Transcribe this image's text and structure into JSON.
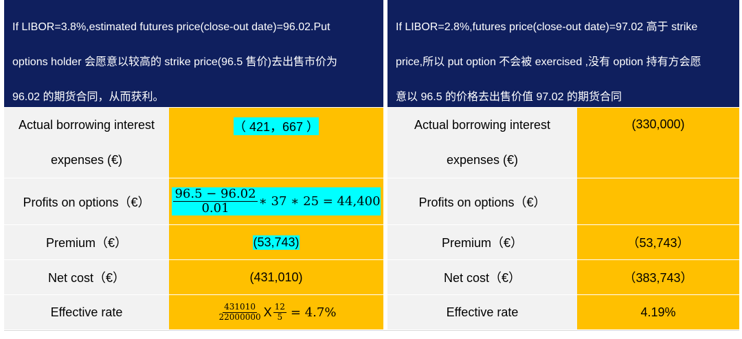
{
  "left": {
    "header": {
      "line1": "If LIBOR=3.8%,estimated futures price(close-out date)=96.02.Put",
      "line2": "options holder  会愿意以较高的 strike price(96.5 售价)去出售市价为",
      "line3": "96.02 的期货合同，从而获利。"
    },
    "rows": {
      "borrowing": {
        "label1": "Actual borrowing interest",
        "label2": "expenses (€)",
        "value": "（ 421，667 ）"
      },
      "options": {
        "label": "Profits on options（€）",
        "num": "96.5 − 96.02",
        "den": "0.01",
        "tail": "∗ 37 ∗ 25 = 44,400"
      },
      "premium": {
        "label": "Premium（€）",
        "value": "(53,743)"
      },
      "net_cost": {
        "label": "Net cost（€）",
        "value": "(431,010)"
      },
      "effective": {
        "label": "Effective rate",
        "num1": "431010",
        "den1": "22000000",
        "times": "X",
        "num2": "12",
        "den2": "5",
        "tail": "= 4.7%"
      }
    }
  },
  "right": {
    "header": {
      "line1": "If LIBOR=2.8%,futures price(close-out date)=97.02 高于 strike",
      "line2": "price,所以 put option 不会被 exercised ,没有 option  持有方会愿",
      "line3": "意以 96.5 的价格去出售价值 97.02 的期货合同"
    },
    "rows": {
      "borrowing": {
        "label1": "Actual borrowing interest",
        "label2": "expenses (€)",
        "value": "(330,000)"
      },
      "options": {
        "label": "Profits on options（€）",
        "value": ""
      },
      "premium": {
        "label": "Premium（€）",
        "value": "（53,743）"
      },
      "net_cost": {
        "label": "Net cost（€）",
        "value": "（383,743）"
      },
      "effective": {
        "label": "Effective rate",
        "value": "4.19%"
      }
    }
  },
  "colors": {
    "header_bg": "#0f1f5e",
    "label_bg": "#f2f2f2",
    "value_bg": "#ffc000",
    "highlight": "#00ffff"
  }
}
